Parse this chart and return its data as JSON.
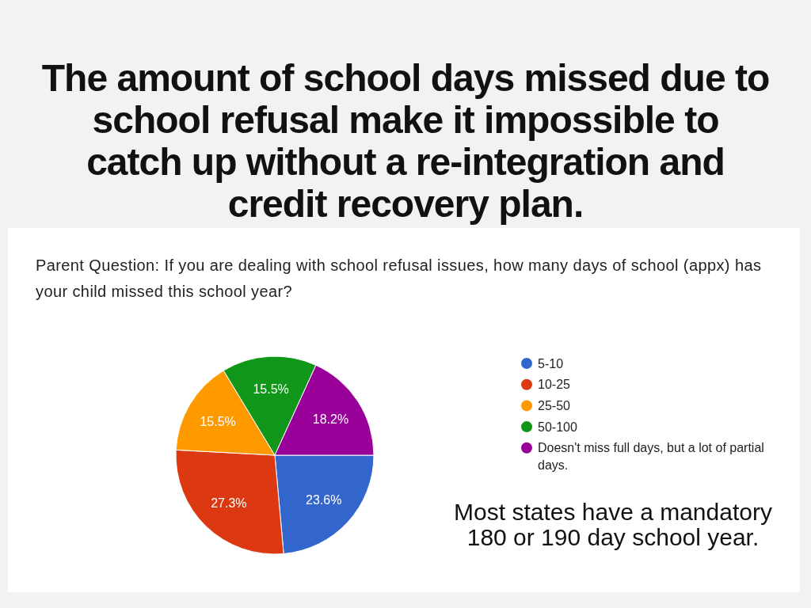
{
  "chart_data": {
    "type": "pie",
    "title": "The amount of school days missed due to school refusal make it impossible to catch up without a re-integration and credit recovery plan.",
    "subtitle": "Parent Question: If you are dealing with school refusal issues, how many days of school (appx) has your child missed this school year?",
    "categories": [
      "5-10",
      "10-25",
      "25-50",
      "50-100",
      "Doesn't miss full days, but a lot of partial days."
    ],
    "values": [
      23.6,
      27.3,
      15.5,
      15.5,
      18.2
    ],
    "colors": [
      "#3366cc",
      "#dc3912",
      "#ff9900",
      "#109618",
      "#990099"
    ],
    "value_labels": [
      "23.6%",
      "27.3%",
      "15.5%",
      "15.5%",
      "18.2%"
    ],
    "legend": "right",
    "annotations": [
      "Most states have a mandatory 180 or 190 day school year."
    ]
  }
}
